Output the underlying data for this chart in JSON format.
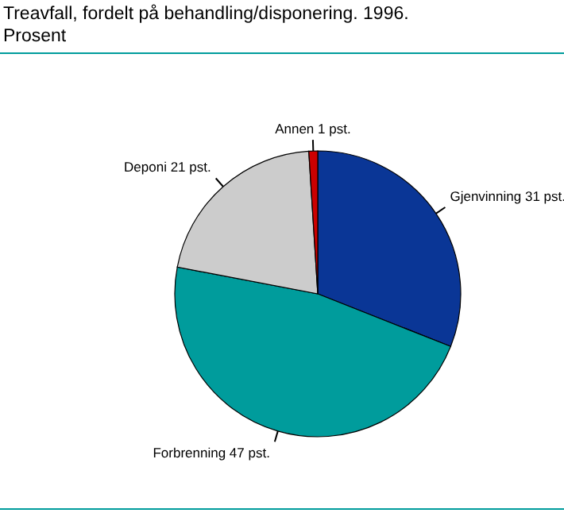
{
  "chart_data": {
    "type": "pie",
    "title": "Treavfall, fordelt på behandling/disponering. 1996.",
    "subtitle": "Prosent",
    "categories": [
      "Gjenvinning",
      "Forbrenning",
      "Deponi",
      "Annen"
    ],
    "values": [
      31,
      47,
      21,
      1
    ],
    "colors": [
      "#0a3696",
      "#009c9c",
      "#cccccc",
      "#cc0000"
    ],
    "value_labels": [
      "31 pst.",
      "47 pst.",
      "21 pst.",
      "1 pst."
    ],
    "legend": false
  }
}
